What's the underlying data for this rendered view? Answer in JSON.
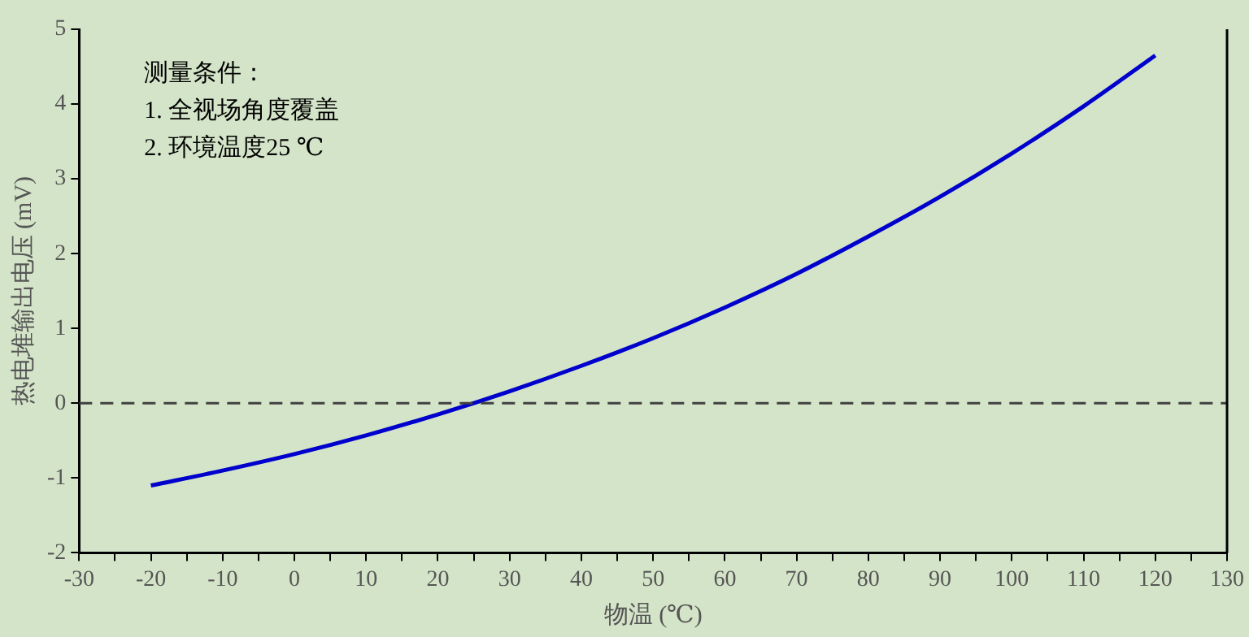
{
  "chart_data": {
    "type": "line",
    "xlabel": "物温 (℃)",
    "ylabel": "热电堆输出电压 (mV)",
    "x": [
      -20,
      -10,
      0,
      10,
      20,
      30,
      40,
      50,
      60,
      70,
      80,
      90,
      100,
      110,
      120
    ],
    "series": [
      {
        "color": "#0000cc",
        "values": [
          -1.1,
          -0.9,
          -0.68,
          -0.43,
          -0.15,
          0.16,
          0.5,
          0.87,
          1.28,
          1.73,
          2.23,
          2.76,
          3.34,
          3.97,
          4.65
        ]
      }
    ],
    "xlim": [
      -30,
      130
    ],
    "xticks": [
      -30,
      {
        "value": -25,
        "label": null
      },
      -20,
      {
        "value": -15,
        "label": null
      },
      -10,
      {
        "value": -5,
        "label": null
      },
      0,
      {
        "value": 5,
        "label": null
      },
      10,
      {
        "value": 15,
        "label": null
      },
      20,
      {
        "value": 25,
        "label": null
      },
      30,
      {
        "value": 35,
        "label": null
      },
      40,
      {
        "value": 45,
        "label": null
      },
      50,
      {
        "value": 55,
        "label": null
      },
      60,
      {
        "value": 65,
        "label": null
      },
      70,
      {
        "value": 75,
        "label": null
      },
      80,
      {
        "value": 85,
        "label": null
      },
      90,
      {
        "value": 95,
        "label": null
      },
      100,
      {
        "value": 105,
        "label": null
      },
      110,
      {
        "value": 115,
        "label": null
      },
      120,
      {
        "value": 125,
        "label": null
      },
      130
    ],
    "ylim": [
      -2,
      5
    ],
    "yticks": [
      -2,
      -1,
      0,
      1,
      2,
      3,
      4,
      5
    ],
    "ref_lines": [
      {
        "axis": "y",
        "value": 0,
        "color": "#404040",
        "line_style": "dashed"
      }
    ],
    "annotations": [
      "测量条件：",
      "1. 全视场角度覆盖",
      "2. 环境温度25 ℃"
    ],
    "grid": false,
    "legend": false,
    "marker": "none",
    "line_style": "solid"
  }
}
